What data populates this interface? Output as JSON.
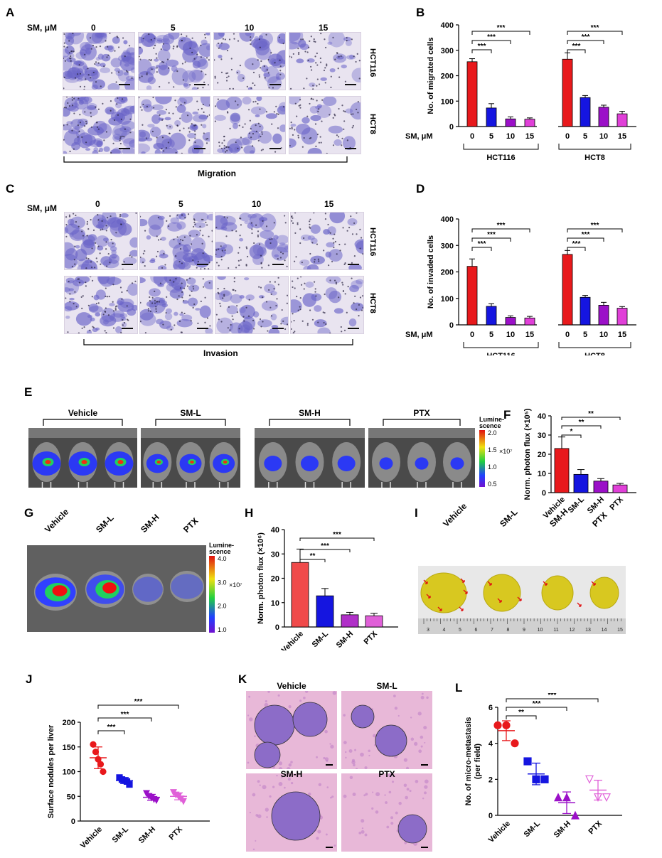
{
  "panels": {
    "A": "A",
    "B": "B",
    "C": "C",
    "D": "D",
    "E": "E",
    "F": "F",
    "G": "G",
    "H": "H",
    "I": "I",
    "J": "J",
    "K": "K",
    "L": "L"
  },
  "sm_label": "SM, μM",
  "doses": [
    "0",
    "5",
    "10",
    "15"
  ],
  "cell_lines": [
    "HCT116",
    "HCT8"
  ],
  "migration_label": "Migration",
  "invasion_label": "Invasion",
  "groups": [
    "Vehicle",
    "SM-L",
    "SM-H",
    "PTX"
  ],
  "lum_label": "Lumine-\nscence",
  "lum_E": {
    "ticks": [
      "2.0",
      "1.5",
      "1.0",
      "0.5"
    ],
    "exp": "×10⁷"
  },
  "lum_G": {
    "ticks": [
      "4.0",
      "3.0",
      "2.0",
      "1.0"
    ],
    "exp": "×10⁷"
  },
  "ruler_ticks": [
    "3",
    "4",
    "5",
    "6",
    "7",
    "8",
    "9",
    "10",
    "11",
    "12",
    "13",
    "14",
    "15"
  ],
  "colors": {
    "red": "#e8191c",
    "blue": "#1515e0",
    "purple": "#9b10c8",
    "magenta": "#e040d8",
    "violet": "#c86ee8"
  },
  "chart_data": [
    {
      "panel": "B",
      "type": "bar",
      "ylabel": "No. of migrated cells",
      "ylim": [
        0,
        400
      ],
      "yticks": [
        0,
        100,
        200,
        300,
        400
      ],
      "categories": [
        "0",
        "5",
        "10",
        "15",
        "0",
        "5",
        "10",
        "15"
      ],
      "groups": [
        "HCT116",
        "HCT8"
      ],
      "values": [
        255,
        73,
        30,
        29,
        265,
        114,
        76,
        50
      ],
      "errors": [
        12,
        17,
        8,
        5,
        25,
        8,
        8,
        10
      ],
      "sig": [
        [
          "0",
          "5",
          "***"
        ],
        [
          "0",
          "10",
          "***"
        ],
        [
          "0",
          "15",
          "***"
        ]
      ]
    },
    {
      "panel": "D",
      "type": "bar",
      "ylabel": "No. of invaded cells",
      "ylim": [
        0,
        400
      ],
      "yticks": [
        0,
        100,
        200,
        300,
        400
      ],
      "categories": [
        "0",
        "5",
        "10",
        "15",
        "0",
        "5",
        "10",
        "15"
      ],
      "groups": [
        "HCT116",
        "HCT8"
      ],
      "values": [
        221,
        70,
        28,
        26,
        266,
        104,
        74,
        63
      ],
      "errors": [
        28,
        10,
        6,
        6,
        15,
        7,
        11,
        6
      ],
      "sig": [
        [
          "0",
          "5",
          "***"
        ],
        [
          "0",
          "10",
          "***"
        ],
        [
          "0",
          "15",
          "***"
        ]
      ]
    },
    {
      "panel": "F",
      "type": "bar",
      "ylabel": "Norm. photon flux (×10⁵)",
      "ylim": [
        0,
        40
      ],
      "yticks": [
        0,
        10,
        20,
        30,
        40
      ],
      "categories": [
        "Vehicle",
        "SM-L",
        "SM-H",
        "PTX"
      ],
      "values": [
        23,
        9.5,
        6,
        4
      ],
      "errors": [
        6,
        2.5,
        1.3,
        0.8
      ],
      "sig": [
        [
          "Vehicle",
          "SM-L",
          "*"
        ],
        [
          "Vehicle",
          "SM-H",
          "**"
        ],
        [
          "Vehicle",
          "PTX",
          "**"
        ]
      ]
    },
    {
      "panel": "H",
      "type": "bar",
      "ylabel": "Norm. photon flux (×10⁶)",
      "ylim": [
        0,
        40
      ],
      "yticks": [
        0,
        10,
        20,
        30,
        40
      ],
      "categories": [
        "Vehicle",
        "SM-L",
        "SM-H",
        "PTX"
      ],
      "values": [
        26.5,
        12.8,
        5,
        4.6
      ],
      "errors": [
        5.5,
        3,
        1,
        1
      ],
      "sig": [
        [
          "Vehicle",
          "SM-L",
          "**"
        ],
        [
          "Vehicle",
          "SM-H",
          "***"
        ],
        [
          "Vehicle",
          "PTX",
          "***"
        ]
      ]
    },
    {
      "panel": "J",
      "type": "scatter",
      "ylabel": "Surface nodules per liver",
      "ylim": [
        0,
        200
      ],
      "yticks": [
        0,
        50,
        100,
        150,
        200
      ],
      "categories": [
        "Vehicle",
        "SM-L",
        "SM-H",
        "PTX"
      ],
      "points": [
        [
          155,
          140,
          125,
          115,
          100
        ],
        [
          88,
          84,
          82,
          80,
          74
        ],
        [
          56,
          50,
          47,
          44,
          42
        ],
        [
          58,
          53,
          50,
          45,
          40
        ]
      ],
      "mean": [
        128,
        82,
        48,
        50
      ],
      "sd": [
        22,
        6,
        6,
        7
      ],
      "sig": [
        [
          "Vehicle",
          "SM-L",
          "***"
        ],
        [
          "Vehicle",
          "SM-H",
          "***"
        ],
        [
          "Vehicle",
          "PTX",
          "***"
        ]
      ]
    },
    {
      "panel": "L",
      "type": "scatter",
      "ylabel": "No. of micro-metastasis\n(per field)",
      "ylim": [
        0,
        6
      ],
      "yticks": [
        0,
        2,
        4,
        6
      ],
      "categories": [
        "Vehicle",
        "SM-L",
        "SM-H",
        "PTX"
      ],
      "points": [
        [
          5,
          5,
          4
        ],
        [
          3,
          2,
          2
        ],
        [
          1,
          1,
          0
        ],
        [
          2,
          1,
          1
        ]
      ],
      "mean": [
        4.7,
        2.3,
        0.7,
        1.4
      ],
      "sd": [
        0.55,
        0.6,
        0.6,
        0.55
      ],
      "sig": [
        [
          "Vehicle",
          "SM-L",
          "**"
        ],
        [
          "Vehicle",
          "SM-H",
          "***"
        ],
        [
          "Vehicle",
          "PTX",
          "***"
        ]
      ]
    }
  ]
}
